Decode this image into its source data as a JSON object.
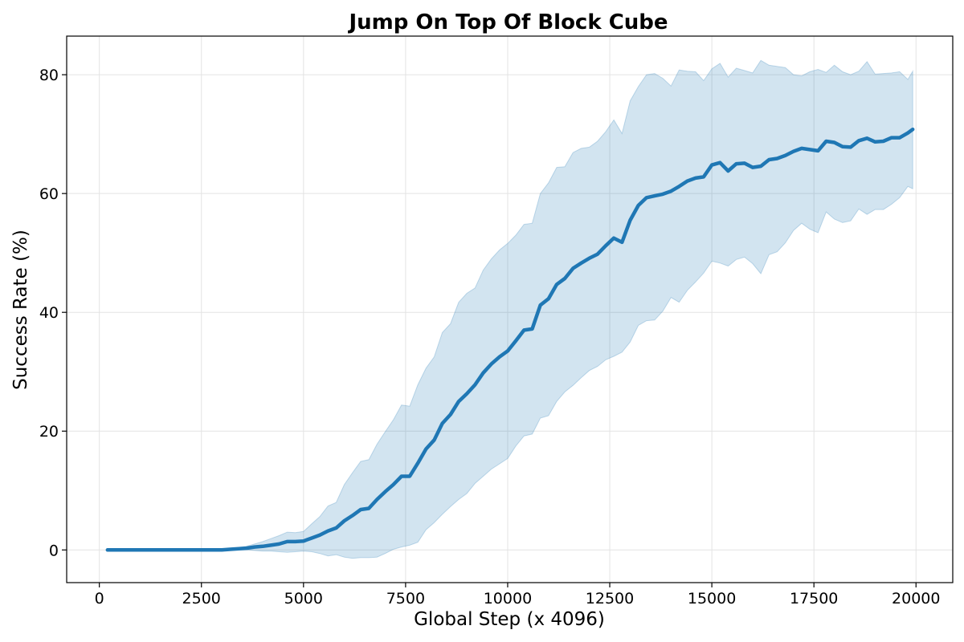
{
  "chart_data": {
    "type": "line",
    "title": "Jump On Top Of Block Cube",
    "xlabel": "Global Step (x 4096)",
    "ylabel": "Success Rate (%)",
    "xlim": [
      -800,
      20900
    ],
    "ylim": [
      -5.5,
      86.5
    ],
    "xticks": [
      0,
      2500,
      5000,
      7500,
      10000,
      12500,
      15000,
      17500,
      20000
    ],
    "yticks": [
      0,
      20,
      40,
      60,
      80
    ],
    "grid": true,
    "colors": {
      "line": "#1f77b4",
      "band": "#1f77b4"
    },
    "series": [
      {
        "x": [
          200,
          600,
          1000,
          1400,
          1800,
          2200,
          2600,
          3000,
          3200,
          3600,
          3800,
          4000,
          4200,
          4400,
          4600,
          4800,
          5000,
          5200,
          5400,
          5600,
          5800,
          6000,
          6200,
          6400,
          6600,
          6800,
          7000,
          7200,
          7400,
          7600,
          7800,
          8000,
          8200,
          8400,
          8600,
          8800,
          9000,
          9200,
          9400,
          9600,
          9800,
          10000,
          10200,
          10400,
          10600,
          10800,
          11000,
          11200,
          11400,
          11600,
          11800,
          12000,
          12200,
          12400,
          12600,
          12800,
          13000,
          13200,
          13400,
          13600,
          13800,
          14000,
          14200,
          14400,
          14600,
          14800,
          15000,
          15200,
          15400,
          15600,
          15800,
          16000,
          16200,
          16400,
          16600,
          16800,
          17000,
          17200,
          17400,
          17600,
          17800,
          18000,
          18200,
          18400,
          18600,
          18800,
          19000,
          19200,
          19400,
          19600,
          19800,
          19920
        ],
        "values": [
          0,
          0,
          0,
          0,
          0,
          0,
          0,
          0,
          0.1,
          0.3,
          0.5,
          0.6,
          0.8,
          1.0,
          1.4,
          1.4,
          1.5,
          2.0,
          2.5,
          3.2,
          3.7,
          4.9,
          5.8,
          6.8,
          7.0,
          8.5,
          9.8,
          11.0,
          12.4,
          12.4,
          14.6,
          17.0,
          18.5,
          21.3,
          22.8,
          25.0,
          26.3,
          27.8,
          29.8,
          31.3,
          32.5,
          33.5,
          35.2,
          37.0,
          37.2,
          41.2,
          42.3,
          44.7,
          45.7,
          47.4,
          48.3,
          49.1,
          49.8,
          51.2,
          52.5,
          51.8,
          55.5,
          58.0,
          59.3,
          59.6,
          59.9,
          60.4,
          61.2,
          62.1,
          62.6,
          62.8,
          64.8,
          65.2,
          63.8,
          65.0,
          65.1,
          64.4,
          64.6,
          65.7,
          65.9,
          66.4,
          67.1,
          67.6,
          67.4,
          67.2,
          68.8,
          68.6,
          67.9,
          67.8,
          68.9,
          69.3,
          68.7,
          68.8,
          69.4,
          69.4,
          70.2,
          70.8
        ],
        "upper": [
          0,
          0,
          0,
          0,
          0,
          0,
          0,
          0,
          0.2,
          0.6,
          1.0,
          1.4,
          1.9,
          2.4,
          3.0,
          2.9,
          3.1,
          4.4,
          5.6,
          7.4,
          8.0,
          11.0,
          13.0,
          14.9,
          15.2,
          17.8,
          19.9,
          21.9,
          24.4,
          24.2,
          27.8,
          30.6,
          32.5,
          36.6,
          38.1,
          41.7,
          43.2,
          44.1,
          47.1,
          49.0,
          50.5,
          51.6,
          53.0,
          54.8,
          55.0,
          60.0,
          61.8,
          64.4,
          64.5,
          66.9,
          67.6,
          67.8,
          68.8,
          70.4,
          72.4,
          70.1,
          75.6,
          78.0,
          80.0,
          80.2,
          79.4,
          78.1,
          80.8,
          80.6,
          80.5,
          79.0,
          81.0,
          81.9,
          79.6,
          81.1,
          80.7,
          80.3,
          82.4,
          81.6,
          81.4,
          81.2,
          80.0,
          79.8,
          80.5,
          80.9,
          80.4,
          81.6,
          80.5,
          80.0,
          80.6,
          82.2,
          80.1,
          80.2,
          80.3,
          80.5,
          79.2,
          80.6
        ],
        "lower": [
          0,
          0,
          0,
          0,
          0,
          0,
          0,
          0,
          0,
          0,
          -0.1,
          -0.2,
          -0.2,
          -0.3,
          -0.4,
          -0.3,
          -0.2,
          -0.3,
          -0.6,
          -1.0,
          -0.8,
          -1.2,
          -1.4,
          -1.3,
          -1.3,
          -1.2,
          -0.6,
          0.1,
          0.5,
          0.8,
          1.3,
          3.4,
          4.6,
          6.0,
          7.3,
          8.5,
          9.5,
          11.2,
          12.4,
          13.6,
          14.5,
          15.4,
          17.5,
          19.2,
          19.5,
          22.2,
          22.6,
          25.0,
          26.6,
          27.7,
          29.0,
          30.2,
          30.9,
          32.0,
          32.6,
          33.3,
          35.0,
          37.8,
          38.6,
          38.7,
          40.2,
          42.5,
          41.7,
          43.7,
          45.1,
          46.6,
          48.6,
          48.3,
          47.8,
          48.9,
          49.3,
          48.2,
          46.5,
          49.7,
          50.2,
          51.7,
          53.8,
          55.0,
          54.0,
          53.4,
          56.9,
          55.7,
          55.1,
          55.4,
          57.4,
          56.5,
          57.3,
          57.3,
          58.2,
          59.3,
          61.2,
          60.8
        ]
      }
    ]
  }
}
